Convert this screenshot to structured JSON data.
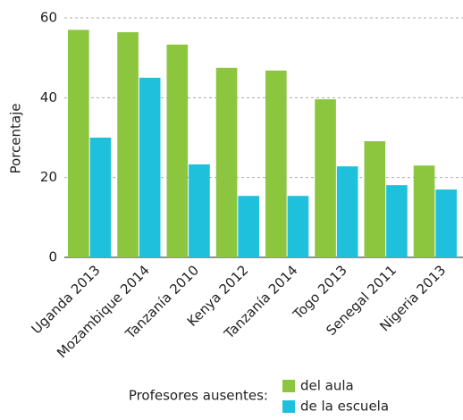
{
  "chart_data": {
    "type": "bar",
    "y_label": "Porcentaje",
    "categories": [
      "Uganda 2013",
      "Mozambique 2014",
      "Tanzanía 2010",
      "Kenya 2012",
      "Tanzanía 2014",
      "Togo 2013",
      "Senegal 2011",
      "Nigeria 2013"
    ],
    "series": [
      {
        "name": "del aula",
        "color": "#8cc63f",
        "values": [
          57,
          56.4,
          53.3,
          47.5,
          46.8,
          39.6,
          29.1,
          23
        ]
      },
      {
        "name": "de la escuela",
        "color": "#1fc0dc",
        "values": [
          30,
          45,
          23.3,
          15.4,
          15.4,
          22.8,
          18.1,
          17
        ]
      }
    ],
    "legend_title": "Profesores ausentes:",
    "ylim": [
      0,
      60
    ],
    "yticks": [
      0,
      20,
      40,
      60
    ],
    "grid": true
  }
}
